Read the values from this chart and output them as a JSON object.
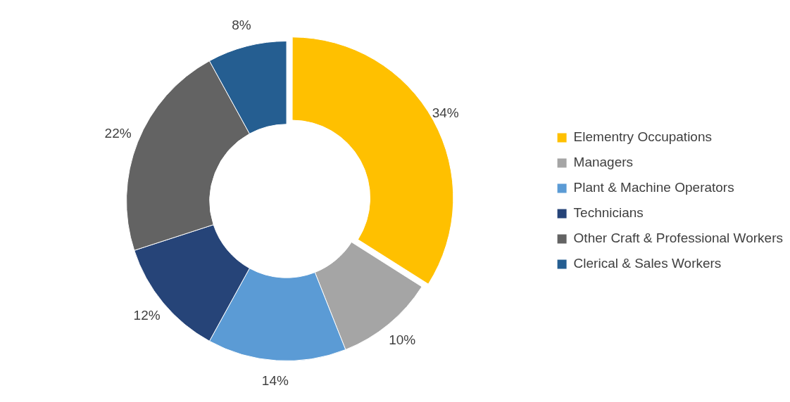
{
  "chart_data": {
    "type": "donut",
    "categories": [
      "Elementry Occupations",
      "Managers",
      "Plant & Machine Operators",
      "Technicians",
      "Other Craft & Professional Workers",
      "Clerical & Sales Workers"
    ],
    "values": [
      34,
      10,
      14,
      12,
      22,
      8
    ],
    "colors": [
      "#ffc000",
      "#a5a5a5",
      "#5b9bd5",
      "#264478",
      "#636363",
      "#255e91"
    ],
    "value_labels": [
      "34%",
      "10%",
      "14%",
      "12%",
      "22%",
      "8%"
    ],
    "legend": "right"
  }
}
